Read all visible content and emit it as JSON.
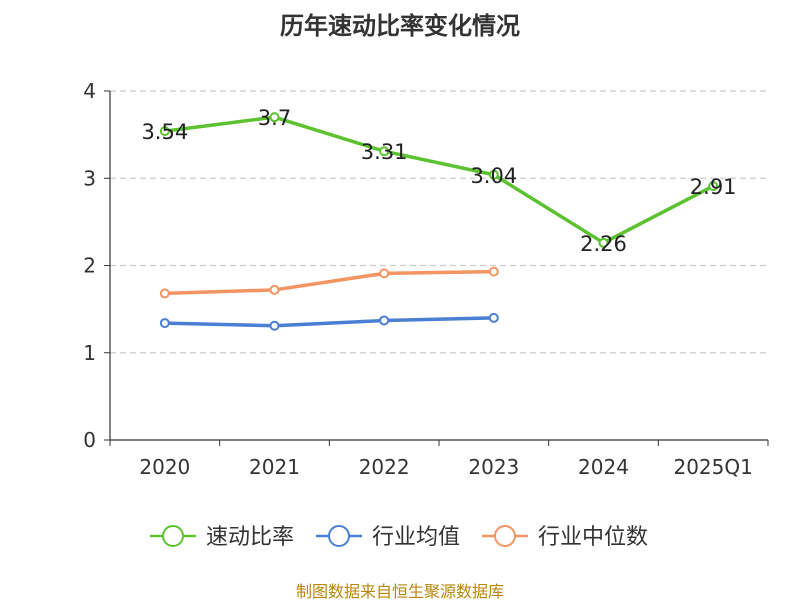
{
  "chart_data": {
    "type": "line",
    "title": "历年速动比率变化情况",
    "categories": [
      "2020",
      "2021",
      "2022",
      "2023",
      "2024",
      "2025Q1"
    ],
    "yticks": [
      "0",
      "1",
      "2",
      "3",
      "4"
    ],
    "ylim": [
      0,
      4
    ],
    "grid": true,
    "legend_position": "bottom",
    "series": [
      {
        "name": "速动比率",
        "color": "#5cc22f",
        "values": [
          3.54,
          3.7,
          3.31,
          3.04,
          2.26,
          2.91
        ],
        "labels": [
          "3.54",
          "3.7",
          "3.31",
          "3.04",
          "2.26",
          "2.91"
        ]
      },
      {
        "name": "行业均值",
        "color": "#4a7fd4",
        "values": [
          1.34,
          1.31,
          1.37,
          1.4,
          null,
          null
        ]
      },
      {
        "name": "行业中位数",
        "color": "#f49461",
        "values": [
          1.68,
          1.72,
          1.91,
          1.93,
          null,
          null
        ]
      }
    ]
  },
  "source": "制图数据来自恒生聚源数据库"
}
